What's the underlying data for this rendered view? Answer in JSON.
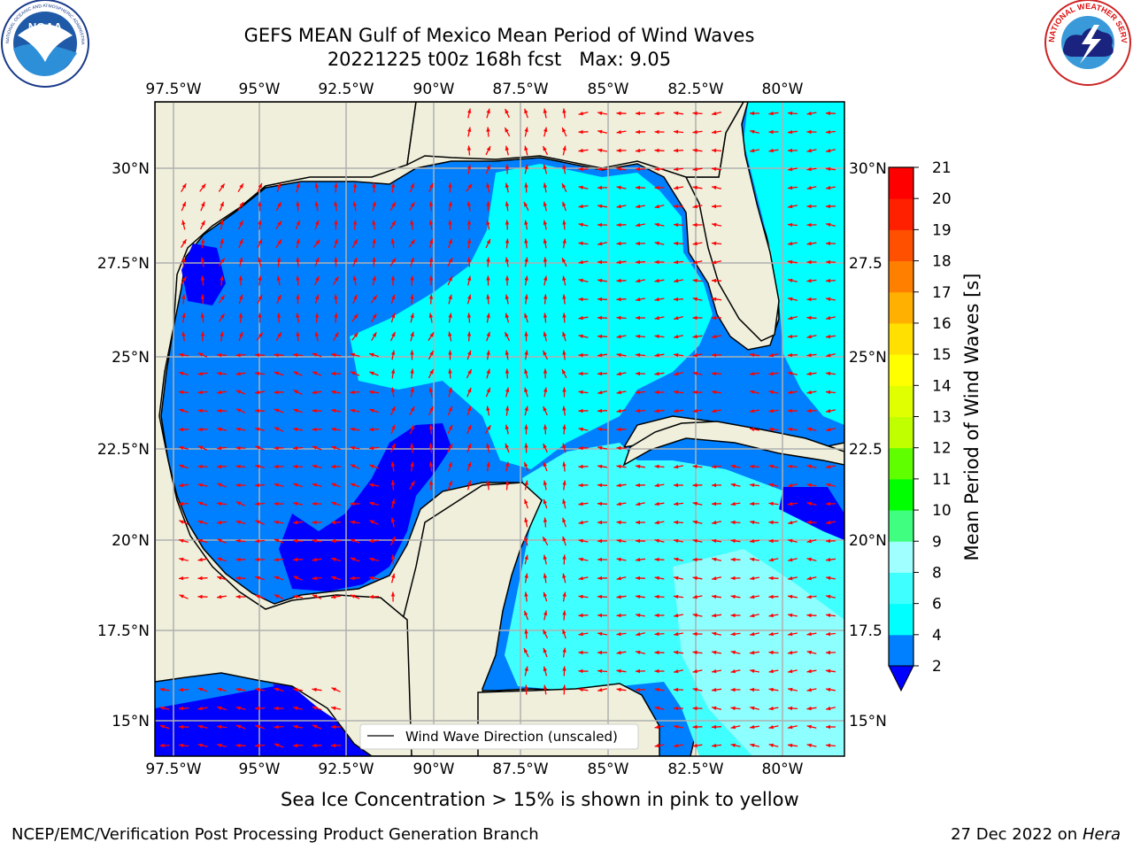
{
  "header": {
    "title_line1": "GEFS MEAN Gulf of Mexico Mean Period of Wind Waves",
    "title_line2": "20221225 t00z 168h fcst   Max: 9.05"
  },
  "logos": {
    "noaa_text": "NOAA",
    "noaa_ring_text": "NATIONAL OCEANIC AND ATMOSPHERIC ADMINISTRATION · U.S. DEPARTMENT OF COMMERCE",
    "nws_ring_text": "NATIONAL WEATHER SERVICE"
  },
  "map": {
    "lon_ticks": [
      "97.5°W",
      "95°W",
      "92.5°W",
      "90°W",
      "87.5°W",
      "85°W",
      "82.5°W",
      "80°W"
    ],
    "lat_ticks_left": [
      "30°N",
      "27.5°N",
      "25°N",
      "22.5°N",
      "20°N",
      "17.5°N",
      "15°N"
    ],
    "lat_ticks_right": [
      "30°N",
      "27.5",
      "25°N",
      "22.5",
      "20°N",
      "17.5",
      "15°N"
    ],
    "legend_label": "Wind Wave Direction (unscaled)",
    "colors": {
      "land": "#efefdc",
      "arrow": "#ff0000",
      "grid": "#b0b0b0"
    }
  },
  "colorbar": {
    "label": "Mean Period of Wind Waves [s]",
    "ticks": [
      "2",
      "4",
      "6",
      "8",
      "9",
      "10",
      "11",
      "12",
      "13",
      "14",
      "15",
      "16",
      "17",
      "18",
      "19",
      "20",
      "21"
    ],
    "colors": [
      "#0080ff",
      "#00ffff",
      "#40ffff",
      "#a0ffff",
      "#40ff80",
      "#00ff00",
      "#60ff00",
      "#c0ff00",
      "#e0ff00",
      "#ffff00",
      "#ffe000",
      "#ffb000",
      "#ff8000",
      "#ff5000",
      "#ff2000",
      "#ff0000"
    ],
    "under_color": "#0000ff"
  },
  "notes": {
    "sea_ice": "Sea Ice Concentration > 15% is shown in pink to yellow"
  },
  "footer": {
    "left": "NCEP/EMC/Verification Post Processing Product Generation Branch",
    "right_date": "27 Dec 2022 on",
    "right_host": "Hera"
  }
}
